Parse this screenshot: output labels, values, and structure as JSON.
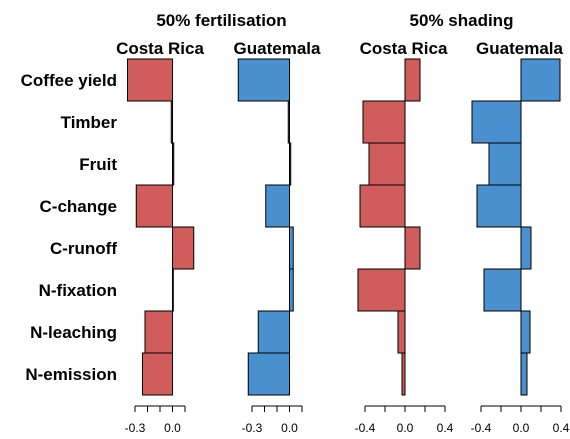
{
  "chart_data": {
    "type": "bar",
    "orientation": "horizontal",
    "categories": [
      "Coffee yield",
      "Timber",
      "Fruit",
      "C-change",
      "C-runoff",
      "N-fixation",
      "N-leaching",
      "N-emission"
    ],
    "groups": [
      {
        "title": "50% fertilisation",
        "panels": [
          {
            "name": "Costa Rica",
            "color": "#d05c5c",
            "xlim": [
              -0.42,
              0.22
            ],
            "ticks": [
              -0.3,
              -0.2,
              -0.1,
              0.0,
              0.1
            ],
            "tick_labels": [
              "-0.3",
              "",
              "",
              "0.0",
              ""
            ],
            "values": [
              -0.36,
              -0.01,
              0.01,
              -0.29,
              0.17,
              0.0,
              -0.22,
              -0.24
            ]
          },
          {
            "name": "Guatemala",
            "color": "#4a90cf",
            "xlim": [
              -0.42,
              0.22
            ],
            "ticks": [
              -0.3,
              -0.2,
              -0.1,
              0.0,
              0.1
            ],
            "tick_labels": [
              "-0.3",
              "",
              "",
              "0.0",
              ""
            ],
            "values": [
              -0.41,
              -0.01,
              0.01,
              -0.19,
              0.03,
              0.03,
              -0.25,
              -0.33
            ]
          }
        ]
      },
      {
        "title": "50% shading",
        "panels": [
          {
            "name": "Costa Rica",
            "color": "#d05c5c",
            "xlim": [
              -0.53,
              0.5
            ],
            "ticks": [
              -0.4,
              -0.2,
              0.0,
              0.2,
              0.4
            ],
            "tick_labels": [
              "-0.4",
              "",
              "0.0",
              "",
              "0.4"
            ],
            "values": [
              0.15,
              -0.42,
              -0.36,
              -0.45,
              0.15,
              -0.47,
              -0.07,
              -0.03
            ]
          },
          {
            "name": "Guatemala",
            "color": "#4a90cf",
            "xlim": [
              -0.53,
              0.5
            ],
            "ticks": [
              -0.4,
              -0.2,
              0.0,
              0.2,
              0.4
            ],
            "tick_labels": [
              "-0.4",
              "",
              "0.0",
              "",
              "0.4"
            ],
            "values": [
              0.39,
              -0.49,
              -0.32,
              -0.44,
              0.1,
              -0.37,
              0.09,
              0.06
            ]
          }
        ]
      }
    ],
    "grid": false,
    "legend": "none"
  }
}
